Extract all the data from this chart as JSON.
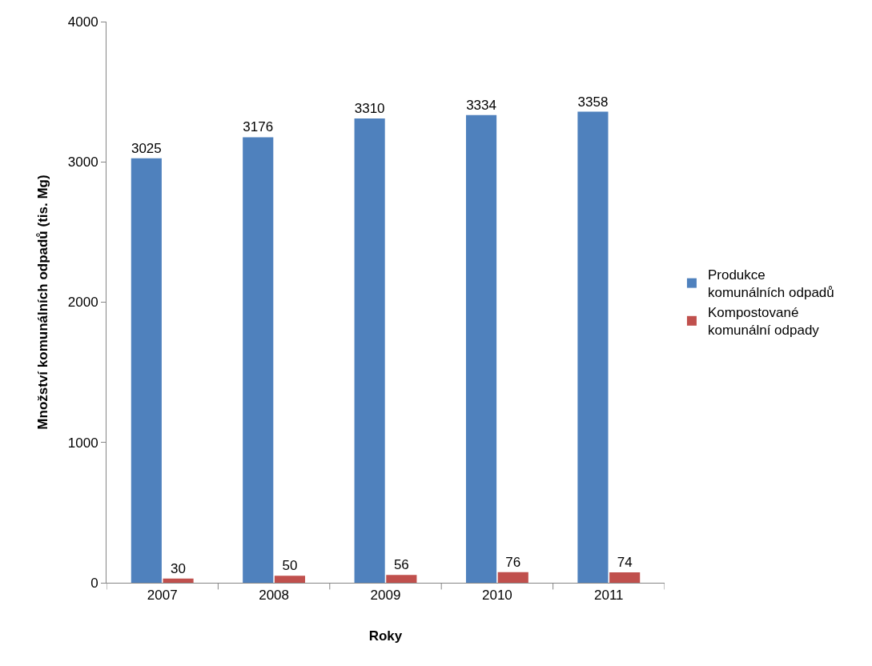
{
  "chart_data": {
    "type": "bar",
    "xlabel": "Roky",
    "ylabel": "Množství komunálních odpadů (tis. Mg)",
    "categories": [
      "2007",
      "2008",
      "2009",
      "2010",
      "2011"
    ],
    "series": [
      {
        "name": "Produkce komunálních odpadů",
        "color": "#4f81bd",
        "values": [
          3025,
          3176,
          3310,
          3334,
          3358
        ]
      },
      {
        "name": "Kompostované komunální odpady",
        "color": "#c0504d",
        "values": [
          30,
          50,
          56,
          76,
          74
        ]
      }
    ],
    "ylim": [
      0,
      4000
    ],
    "yticks": [
      0,
      1000,
      2000,
      3000,
      4000
    ],
    "data_labels": true,
    "grid": false,
    "legend": "right"
  }
}
